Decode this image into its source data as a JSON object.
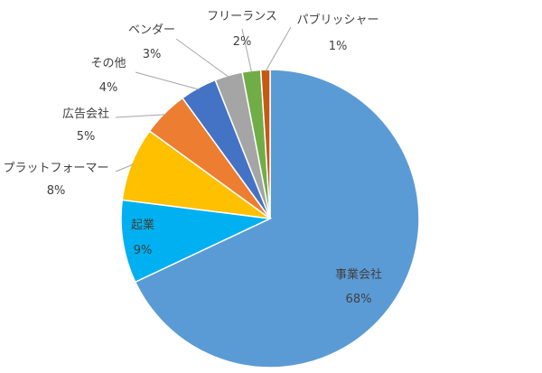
{
  "chart_data": {
    "type": "pie",
    "start_angle_deg": 0,
    "direction": "clockwise",
    "slices": [
      {
        "label": "事業会社",
        "value": 68,
        "pct_label": "68%",
        "color": "#5B9BD5"
      },
      {
        "label": "起業",
        "value": 9,
        "pct_label": "9%",
        "color": "#00B0F0"
      },
      {
        "label": "プラットフォーマー",
        "value": 8,
        "pct_label": "8%",
        "color": "#FFC000"
      },
      {
        "label": "広告会社",
        "value": 5,
        "pct_label": "5%",
        "color": "#ED7D31"
      },
      {
        "label": "その他",
        "value": 4,
        "pct_label": "4%",
        "color": "#4472C4"
      },
      {
        "label": "ベンダー",
        "value": 3,
        "pct_label": "3%",
        "color": "#A5A5A5"
      },
      {
        "label": "フリーランス",
        "value": 2,
        "pct_label": "2%",
        "color": "#70AD47"
      },
      {
        "label": "パブリッシャー",
        "value": 1,
        "pct_label": "1%",
        "color": "#C55A11"
      }
    ]
  }
}
